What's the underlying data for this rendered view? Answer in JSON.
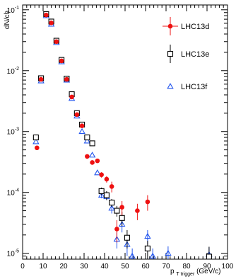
{
  "chart_data": {
    "type": "scatter",
    "title": "",
    "ylabel": "dN/ch",
    "xlabel_main": "p",
    "xlabel_sub": "T trigger",
    "xlabel_unit": "(GeV/c)",
    "xlim": [
      0,
      100
    ],
    "ylim": [
      8e-06,
      0.12
    ],
    "yscale": "log",
    "x_ticks": [
      0,
      10,
      20,
      30,
      40,
      50,
      60,
      70,
      80,
      90,
      100
    ],
    "x_tick_labels": [
      "0",
      "10",
      "20",
      "30",
      "40",
      "50",
      "60",
      "70",
      "80",
      "90",
      "100"
    ],
    "y_ticks": [
      1e-05,
      0.0001,
      0.001,
      0.01,
      0.1
    ],
    "y_tick_labels_base": [
      "10",
      "10",
      "10",
      "10",
      "10"
    ],
    "y_tick_labels_exp": [
      "-5",
      "-4",
      "-3",
      "-2",
      "-1"
    ],
    "legend_position": "top-right",
    "series": [
      {
        "name": "LHC13d",
        "marker": "filled-circle",
        "color": "#ee1111",
        "points": [
          {
            "x": 7,
            "y": 0.00054,
            "err": 0
          },
          {
            "x": 9,
            "y": 0.0072,
            "err": 0
          },
          {
            "x": 11.5,
            "y": 0.082,
            "err": 0
          },
          {
            "x": 14,
            "y": 0.061,
            "err": 0
          },
          {
            "x": 16.5,
            "y": 0.03,
            "err": 0
          },
          {
            "x": 19,
            "y": 0.0145,
            "err": 0
          },
          {
            "x": 21.5,
            "y": 0.0072,
            "err": 0
          },
          {
            "x": 24,
            "y": 0.0037,
            "err": 0
          },
          {
            "x": 26.5,
            "y": 0.0019,
            "err": 0
          },
          {
            "x": 29,
            "y": 0.00124,
            "err": 0
          },
          {
            "x": 31.5,
            "y": 0.00039,
            "err": 0
          },
          {
            "x": 34,
            "y": 0.00031,
            "err": 0
          },
          {
            "x": 36.5,
            "y": 0.00033,
            "err": 0
          },
          {
            "x": 38.5,
            "y": 0.000195,
            "err": 2e-05
          },
          {
            "x": 41,
            "y": 0.000165,
            "err": 2e-05
          },
          {
            "x": 43.5,
            "y": 0.000125,
            "err": 2.5e-05
          },
          {
            "x": 46,
            "y": 2.5e-05,
            "err": 1e-05
          },
          {
            "x": 48.5,
            "y": 5.7e-05,
            "err": 1.5e-05
          },
          {
            "x": 56,
            "y": 5e-05,
            "err": 1.5e-05
          },
          {
            "x": 61,
            "y": 7e-05,
            "err": 2e-05
          }
        ]
      },
      {
        "name": "LHC13e",
        "marker": "open-square",
        "color": "#000000",
        "points": [
          {
            "x": 6.5,
            "y": 0.0008,
            "err": 0
          },
          {
            "x": 9,
            "y": 0.0075,
            "err": 0
          },
          {
            "x": 11.5,
            "y": 0.085,
            "err": 0
          },
          {
            "x": 14,
            "y": 0.064,
            "err": 0
          },
          {
            "x": 16.5,
            "y": 0.031,
            "err": 0
          },
          {
            "x": 19,
            "y": 0.015,
            "err": 0
          },
          {
            "x": 21.5,
            "y": 0.0074,
            "err": 0
          },
          {
            "x": 24,
            "y": 0.0041,
            "err": 0
          },
          {
            "x": 26.5,
            "y": 0.002,
            "err": 0
          },
          {
            "x": 29,
            "y": 0.0013,
            "err": 0
          },
          {
            "x": 31.5,
            "y": 0.0008,
            "err": 0
          },
          {
            "x": 34,
            "y": 0.00064,
            "err": 0
          },
          {
            "x": 38.5,
            "y": 0.000105,
            "err": 1.5e-05
          },
          {
            "x": 41,
            "y": 9e-05,
            "err": 1.5e-05
          },
          {
            "x": 43.5,
            "y": 6.8e-05,
            "err": 1e-05
          },
          {
            "x": 46,
            "y": 5e-05,
            "err": 1e-05
          },
          {
            "x": 48.5,
            "y": 3.8e-05,
            "err": 1e-05
          },
          {
            "x": 51,
            "y": 1.8e-05,
            "err": 6e-06
          },
          {
            "x": 61,
            "y": 1.2e-05,
            "err": 4e-06
          },
          {
            "x": 91,
            "y": 8.8e-06,
            "err": 4e-06
          }
        ]
      },
      {
        "name": "LHC13f",
        "marker": "open-triangle",
        "color": "#2255ee",
        "points": [
          {
            "x": 6.5,
            "y": 0.00068,
            "err": 0
          },
          {
            "x": 9,
            "y": 0.0068,
            "err": 0
          },
          {
            "x": 11.5,
            "y": 0.08,
            "err": 0
          },
          {
            "x": 14,
            "y": 0.058,
            "err": 0
          },
          {
            "x": 16.5,
            "y": 0.029,
            "err": 0
          },
          {
            "x": 19,
            "y": 0.014,
            "err": 0
          },
          {
            "x": 21.5,
            "y": 0.007,
            "err": 0
          },
          {
            "x": 24,
            "y": 0.0035,
            "err": 0
          },
          {
            "x": 26.5,
            "y": 0.0018,
            "err": 0
          },
          {
            "x": 29,
            "y": 0.001,
            "err": 0
          },
          {
            "x": 31.5,
            "y": 0.0007,
            "err": 0
          },
          {
            "x": 34,
            "y": 0.00041,
            "err": 0
          },
          {
            "x": 36.5,
            "y": 0.00021,
            "err": 0
          },
          {
            "x": 38.5,
            "y": 9e-05,
            "err": 1e-05
          },
          {
            "x": 41,
            "y": 8.5e-05,
            "err": 1e-05
          },
          {
            "x": 43.5,
            "y": 5.5e-05,
            "err": 1e-05
          },
          {
            "x": 46,
            "y": 1.7e-05,
            "err": 5e-06
          },
          {
            "x": 48.5,
            "y": 3e-05,
            "err": 8e-06
          },
          {
            "x": 51,
            "y": 1.4e-05,
            "err": 5e-06
          },
          {
            "x": 53.5,
            "y": 9e-06,
            "err": 3e-06
          },
          {
            "x": 61,
            "y": 1.9e-05,
            "err": 5e-06
          },
          {
            "x": 63.5,
            "y": 9e-06,
            "err": 3e-06
          },
          {
            "x": 71,
            "y": 1e-05,
            "err": 3e-06
          },
          {
            "x": 91,
            "y": 9.5e-06,
            "err": 3e-06
          }
        ]
      }
    ]
  }
}
